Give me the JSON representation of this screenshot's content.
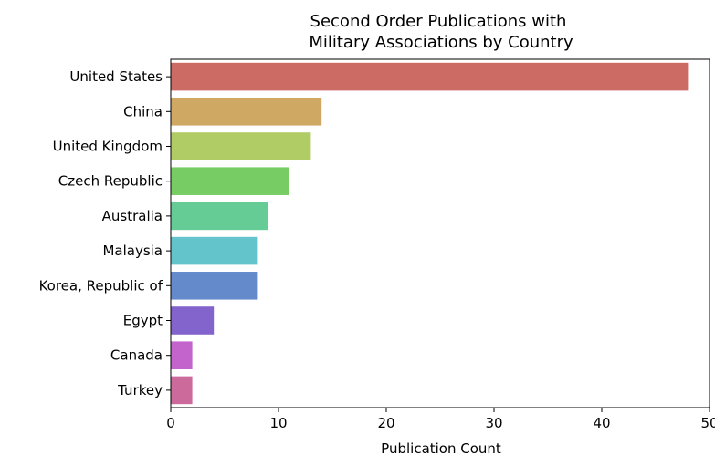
{
  "chart_data": {
    "type": "bar",
    "orientation": "horizontal",
    "title_lines": [
      "Second Order Publications with",
      "Military Associations by Country"
    ],
    "xlabel": "Publication Count",
    "ylabel": "",
    "xlim": [
      0,
      50
    ],
    "xticks": [
      0,
      10,
      20,
      30,
      40,
      50
    ],
    "xtick_labels": [
      "0",
      "10",
      "20",
      "30",
      "40",
      "50"
    ],
    "grid": false,
    "categories": [
      "United States",
      "China",
      "United Kingdom",
      "Czech Republic",
      "Australia",
      "Malaysia",
      "Korea,  Republic of",
      "Egypt",
      "Canada",
      "Turkey"
    ],
    "values": [
      48,
      14,
      13,
      11,
      9,
      8,
      8,
      4,
      2,
      2
    ],
    "colors": [
      "#cc6a64",
      "#cfa864",
      "#b0cc64",
      "#78cc64",
      "#64cc94",
      "#64c4cc",
      "#648acc",
      "#8264cc",
      "#c264cc",
      "#cc6a9c"
    ]
  }
}
